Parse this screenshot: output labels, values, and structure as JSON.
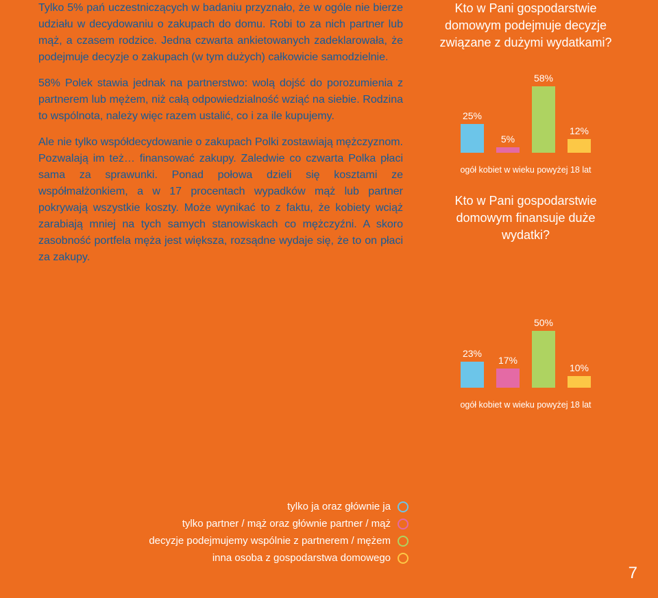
{
  "colors": {
    "background": "#ed6d1f",
    "text_body": "#145b9a",
    "white": "#ffffff",
    "bar1": "#6cc5e9",
    "bar2": "#e46aa5",
    "bar3": "#aed361",
    "bar4": "#fcc846"
  },
  "paragraphs": {
    "p1": "Tylko 5% pań uczestniczących w badaniu przyznało, że w ogóle nie bierze udziału w decydowaniu o zakupach do domu. Robi to za nich partner lub mąż, a czasem rodzice. Jedna czwarta ankietowanych zadeklarowała, że podejmuje decyzje o zakupach (w tym dużych) całkowicie samodzielnie.",
    "p2": "58% Polek stawia jednak na partnerstwo: wolą dojść do porozumienia z partnerem lub mężem, niż całą odpowiedzialność wziąć na siebie. Rodzina to wspólnota, należy więc razem ustalić, co i za ile kupujemy.",
    "p3": "Ale nie tylko współdecydowanie o zakupach Polki zostawiają mężczyznom. Pozwalają im też… finansować zakupy. Zaledwie co czwarta Polka płaci sama za sprawunki. Ponad połowa dzieli się kosztami ze współmałżonkiem, a w 17 procentach wypadków mąż lub partner pokrywają wszystkie koszty. Może wynikać to z faktu, że kobiety wciąż zarabiają mniej na tych samych stanowiskach co mężczyźni. A skoro zasobność portfela męża jest większa, rozsądne wydaje się, że to on płaci za zakupy."
  },
  "chart1": {
    "title": "Kto w Pani gospodarstwie domowym podejmuje decyzje związane z dużymi wydatkami?",
    "max": 60,
    "bars": [
      {
        "label": "25%",
        "value": 25,
        "color_key": "bar1"
      },
      {
        "label": "5%",
        "value": 5,
        "color_key": "bar2"
      },
      {
        "label": "58%",
        "value": 58,
        "color_key": "bar3"
      },
      {
        "label": "12%",
        "value": 12,
        "color_key": "bar4"
      }
    ],
    "caption": "ogół kobiet w wieku powyżej 18 lat"
  },
  "chart2": {
    "title": "Kto w Pani gospodarstwie domowym finansuje duże wydatki?",
    "max": 60,
    "bars": [
      {
        "label": "23%",
        "value": 23,
        "color_key": "bar1"
      },
      {
        "label": "17%",
        "value": 17,
        "color_key": "bar2"
      },
      {
        "label": "50%",
        "value": 50,
        "color_key": "bar3"
      },
      {
        "label": "10%",
        "value": 10,
        "color_key": "bar4"
      }
    ],
    "caption": "ogół kobiet w wieku powyżej 18 lat"
  },
  "legend": {
    "items": [
      {
        "text": "tylko ja oraz głównie ja",
        "color_key": "bar1"
      },
      {
        "text": "tylko partner / mąż oraz głównie partner / mąż",
        "color_key": "bar2"
      },
      {
        "text": "decyzje podejmujemy wspólnie z partnerem / mężem",
        "color_key": "bar3"
      },
      {
        "text": "inna osoba z gospodarstwa domowego",
        "color_key": "bar4"
      }
    ]
  },
  "page_number": "7"
}
